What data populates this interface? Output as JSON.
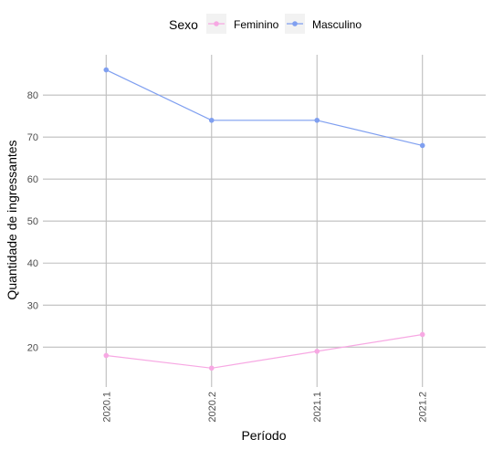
{
  "chart_data": {
    "type": "line",
    "categories": [
      "2020.1",
      "2020.2",
      "2021.1",
      "2021.2"
    ],
    "series": [
      {
        "name": "Feminino",
        "values": [
          18,
          15,
          19,
          23
        ],
        "color": "#F7A8E3"
      },
      {
        "name": "Masculino",
        "values": [
          86,
          74,
          74,
          68
        ],
        "color": "#7F9FF0"
      }
    ],
    "xlabel": "Período",
    "ylabel": "Quantidade de ingressantes",
    "yticks": [
      20,
      30,
      40,
      50,
      60,
      70,
      80
    ],
    "ylim": [
      10.5,
      89.6
    ],
    "legend": {
      "title": "Sexo",
      "position": "top"
    },
    "grid": true,
    "colors": {
      "grid": "#bebebe",
      "legend_key_bg": "#f2f2f2"
    }
  }
}
